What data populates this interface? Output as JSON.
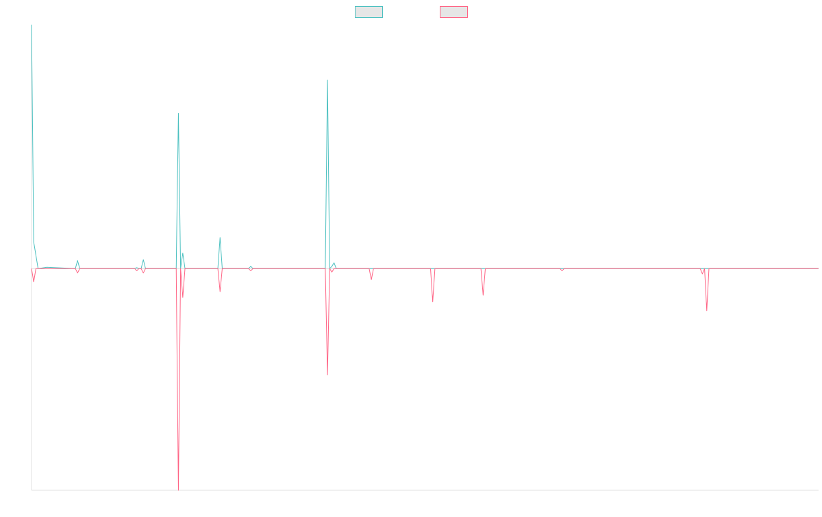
{
  "chart_data": {
    "type": "line",
    "title": "",
    "xlabel": "",
    "ylabel": "",
    "grid": false,
    "legend": {
      "position": "top-center",
      "entries": [
        {
          "label": "",
          "color": "#4bc0c0"
        },
        {
          "label": "",
          "color": "#ff6384"
        }
      ]
    },
    "x": [
      0,
      1,
      2,
      3,
      4,
      5,
      6,
      7,
      8,
      9,
      10,
      11,
      12,
      13,
      14,
      15,
      16,
      17,
      18,
      19,
      20,
      21,
      22,
      23,
      24,
      25,
      26,
      27,
      28,
      29,
      30,
      31,
      32,
      33,
      34,
      35,
      36,
      37,
      38,
      39,
      40,
      41,
      42,
      43,
      44,
      45,
      46,
      47,
      48,
      49,
      50,
      51,
      52,
      53,
      54,
      55,
      56,
      57,
      58,
      59,
      60,
      61,
      62,
      63,
      64,
      65,
      66,
      67,
      68,
      69,
      70,
      71,
      72,
      73,
      74,
      75,
      76,
      77,
      78,
      79,
      80,
      81,
      82,
      83,
      84,
      85,
      86,
      87,
      88,
      89,
      90,
      91,
      92,
      93,
      94,
      95,
      96,
      97,
      98,
      99,
      100,
      101,
      102,
      103,
      104,
      105,
      106,
      107,
      108,
      109,
      110,
      111,
      112,
      113,
      114,
      115,
      116,
      117,
      118,
      119,
      120,
      121,
      122,
      123,
      124,
      125,
      126,
      127,
      128,
      129,
      130,
      131,
      132,
      133,
      134,
      135,
      136,
      137,
      138,
      139,
      140,
      141,
      142,
      143,
      144,
      145,
      146,
      147,
      148,
      149,
      150,
      151,
      152,
      153,
      154,
      155,
      156,
      157,
      158,
      159,
      160,
      161,
      162,
      163,
      164,
      165,
      166,
      167,
      168,
      169,
      170,
      171,
      172,
      173,
      174,
      175,
      176,
      177,
      178,
      179,
      180,
      181,
      182,
      183,
      184,
      185,
      186,
      187,
      188,
      189,
      190,
      191,
      192,
      193,
      194,
      195,
      196,
      197,
      198,
      199,
      200,
      201,
      202,
      203,
      204,
      205,
      206,
      207,
      208,
      209,
      210,
      211,
      212,
      213,
      214,
      215,
      216,
      217,
      218,
      219,
      220,
      221,
      222,
      223,
      224,
      225,
      226,
      227,
      228,
      229,
      230,
      231,
      232,
      233,
      234,
      235,
      236,
      237,
      238,
      239,
      240,
      241,
      242,
      243,
      244,
      245,
      246,
      247,
      248,
      249,
      250,
      251,
      252,
      253,
      254,
      255,
      256,
      257,
      258,
      259,
      260,
      261,
      262,
      263,
      264,
      265,
      266,
      267,
      268,
      269,
      270,
      271,
      272,
      273,
      274,
      275,
      276,
      277,
      278,
      279,
      280,
      281,
      282,
      283,
      284,
      285,
      286,
      287,
      288,
      289,
      290,
      291,
      292,
      293,
      294,
      295,
      296,
      297,
      298,
      299,
      300,
      301,
      302,
      303,
      304,
      305,
      306,
      307,
      308,
      309,
      310,
      311,
      312,
      313,
      314,
      315,
      316,
      317,
      318,
      319,
      320,
      321,
      322,
      323,
      324,
      325,
      326,
      327,
      328,
      329,
      330,
      331,
      332,
      333,
      334,
      335,
      336,
      337,
      338,
      339,
      340,
      341,
      342,
      343,
      344,
      345,
      346,
      347,
      348,
      349,
      350,
      351,
      352,
      353,
      354,
      355,
      356,
      357,
      358,
      359
    ],
    "xlim": [
      0,
      359
    ],
    "ylim": [
      -50,
      55
    ],
    "series": [
      {
        "name": "",
        "color": "#4bc0c0",
        "points": [
          [
            0,
            55
          ],
          [
            1,
            6
          ],
          [
            2,
            3
          ],
          [
            3,
            0
          ],
          [
            7,
            0.3
          ],
          [
            20,
            0
          ],
          [
            21,
            1.8
          ],
          [
            22,
            0
          ],
          [
            47,
            0
          ],
          [
            48,
            0.2
          ],
          [
            49,
            0
          ],
          [
            50,
            0
          ],
          [
            51,
            2
          ],
          [
            52,
            0
          ],
          [
            66,
            0
          ],
          [
            67,
            35
          ],
          [
            68,
            0
          ],
          [
            69,
            3.5
          ],
          [
            70,
            0
          ],
          [
            74,
            0
          ],
          [
            75,
            0
          ],
          [
            85,
            0
          ],
          [
            86,
            7
          ],
          [
            87,
            0
          ],
          [
            99,
            0
          ],
          [
            100,
            0.5
          ],
          [
            101,
            0
          ],
          [
            134,
            0
          ],
          [
            135,
            42.5
          ],
          [
            136,
            0
          ],
          [
            137,
            0.5
          ],
          [
            138,
            1.3
          ],
          [
            139,
            0
          ],
          [
            154,
            0
          ],
          [
            155,
            0
          ],
          [
            160,
            0
          ],
          [
            162,
            0
          ],
          [
            163,
            0
          ],
          [
            164,
            0
          ],
          [
            165,
            0
          ],
          [
            167,
            0
          ],
          [
            168,
            0
          ],
          [
            174,
            0
          ],
          [
            175,
            0
          ],
          [
            176,
            0
          ],
          [
            177,
            0
          ],
          [
            178,
            0
          ],
          [
            179,
            0
          ],
          [
            180,
            0
          ],
          [
            181,
            0
          ],
          [
            182,
            0
          ],
          [
            183,
            0
          ],
          [
            184,
            0
          ],
          [
            185,
            0
          ],
          [
            186,
            0
          ],
          [
            187,
            0
          ],
          [
            188,
            0
          ],
          [
            189,
            0
          ],
          [
            190,
            0
          ],
          [
            191,
            0
          ],
          [
            192,
            0
          ],
          [
            193,
            0
          ],
          [
            194,
            0
          ],
          [
            195,
            0
          ],
          [
            196,
            0
          ],
          [
            197,
            0
          ],
          [
            198,
            0
          ],
          [
            199,
            0
          ],
          [
            200,
            0
          ],
          [
            201,
            0
          ],
          [
            202,
            0
          ],
          [
            203,
            0
          ],
          [
            204,
            0
          ],
          [
            205,
            0
          ],
          [
            206,
            0
          ],
          [
            207,
            0
          ],
          [
            208,
            0
          ],
          [
            209,
            0
          ],
          [
            210,
            0
          ],
          [
            211,
            0
          ],
          [
            212,
            0
          ],
          [
            213,
            0
          ],
          [
            214,
            0
          ],
          [
            215,
            0
          ],
          [
            216,
            0
          ],
          [
            217,
            0
          ],
          [
            218,
            0
          ],
          [
            219,
            0
          ],
          [
            220,
            0
          ],
          [
            221,
            0
          ],
          [
            222,
            0
          ],
          [
            223,
            0
          ],
          [
            224,
            0
          ],
          [
            225,
            0
          ],
          [
            226,
            0
          ],
          [
            227,
            0
          ],
          [
            228,
            0
          ],
          [
            229,
            0
          ],
          [
            230,
            0
          ],
          [
            231,
            0
          ],
          [
            232,
            0
          ],
          [
            233,
            0
          ],
          [
            234,
            0
          ],
          [
            235,
            0
          ],
          [
            236,
            0
          ],
          [
            237,
            0
          ],
          [
            238,
            0
          ],
          [
            239,
            0
          ],
          [
            240,
            0
          ],
          [
            241,
            0
          ],
          [
            242,
            0
          ],
          [
            243,
            0
          ],
          [
            244,
            0
          ],
          [
            245,
            0
          ],
          [
            246,
            0
          ],
          [
            247,
            0
          ],
          [
            248,
            0
          ],
          [
            249,
            0
          ],
          [
            250,
            0
          ],
          [
            251,
            0
          ],
          [
            252,
            0
          ],
          [
            253,
            0
          ],
          [
            254,
            0
          ],
          [
            255,
            0
          ],
          [
            256,
            0
          ],
          [
            257,
            0
          ],
          [
            258,
            0
          ],
          [
            259,
            0
          ],
          [
            260,
            0
          ],
          [
            261,
            0
          ],
          [
            262,
            0
          ],
          [
            263,
            0
          ],
          [
            264,
            0
          ],
          [
            265,
            0
          ],
          [
            266,
            0
          ],
          [
            267,
            0
          ],
          [
            268,
            0
          ],
          [
            269,
            0
          ],
          [
            270,
            0
          ],
          [
            271,
            0
          ],
          [
            272,
            0
          ],
          [
            273,
            0
          ],
          [
            274,
            0
          ],
          [
            275,
            0
          ],
          [
            276,
            0
          ],
          [
            277,
            0
          ],
          [
            278,
            0
          ],
          [
            279,
            0
          ],
          [
            280,
            0
          ],
          [
            281,
            0
          ],
          [
            282,
            0
          ],
          [
            283,
            0
          ],
          [
            284,
            0
          ],
          [
            285,
            0
          ],
          [
            286,
            0
          ],
          [
            287,
            0
          ],
          [
            288,
            0
          ],
          [
            289,
            0
          ],
          [
            290,
            0
          ],
          [
            291,
            0
          ],
          [
            292,
            0
          ],
          [
            293,
            0
          ],
          [
            294,
            0
          ],
          [
            295,
            0
          ],
          [
            296,
            0
          ],
          [
            297,
            0
          ],
          [
            298,
            0
          ],
          [
            299,
            0
          ],
          [
            300,
            0
          ],
          [
            301,
            0
          ],
          [
            302,
            0
          ],
          [
            303,
            0
          ],
          [
            304,
            0
          ],
          [
            305,
            0
          ],
          [
            306,
            0
          ],
          [
            307,
            0
          ],
          [
            308,
            0
          ],
          [
            309,
            0
          ],
          [
            310,
            0
          ],
          [
            311,
            0
          ],
          [
            312,
            0
          ],
          [
            313,
            0
          ],
          [
            314,
            0
          ],
          [
            315,
            0
          ],
          [
            316,
            0
          ],
          [
            317,
            0
          ],
          [
            318,
            0
          ],
          [
            319,
            0
          ],
          [
            320,
            0
          ],
          [
            321,
            0
          ],
          [
            322,
            0
          ],
          [
            323,
            0
          ],
          [
            324,
            0
          ],
          [
            325,
            0
          ],
          [
            326,
            0
          ],
          [
            327,
            0
          ],
          [
            328,
            0
          ],
          [
            329,
            0
          ],
          [
            330,
            0
          ],
          [
            331,
            0
          ],
          [
            332,
            0
          ],
          [
            333,
            0
          ],
          [
            334,
            0
          ],
          [
            335,
            0
          ],
          [
            336,
            0
          ],
          [
            337,
            0
          ],
          [
            338,
            0
          ],
          [
            339,
            0
          ],
          [
            340,
            0
          ],
          [
            341,
            0
          ],
          [
            342,
            0
          ],
          [
            343,
            0
          ],
          [
            344,
            0
          ],
          [
            345,
            0
          ],
          [
            346,
            0
          ],
          [
            347,
            0
          ],
          [
            348,
            0
          ],
          [
            349,
            0
          ],
          [
            350,
            0
          ],
          [
            351,
            0
          ],
          [
            352,
            0
          ],
          [
            353,
            0
          ],
          [
            354,
            0
          ],
          [
            355,
            0
          ],
          [
            356,
            0
          ],
          [
            357,
            0
          ],
          [
            358,
            0
          ],
          [
            359,
            0
          ]
        ]
      },
      {
        "name": "",
        "color": "#ff6384",
        "points": [
          [
            0,
            0
          ],
          [
            1,
            -3
          ],
          [
            2,
            0
          ],
          [
            20,
            0
          ],
          [
            21,
            -1
          ],
          [
            22,
            0
          ],
          [
            47,
            0
          ],
          [
            48,
            -0.5
          ],
          [
            49,
            0
          ],
          [
            50,
            0
          ],
          [
            51,
            -1
          ],
          [
            52,
            0
          ],
          [
            66,
            0
          ],
          [
            67,
            -50
          ],
          [
            68,
            0
          ],
          [
            69,
            -6.5
          ],
          [
            70,
            0
          ],
          [
            85,
            0
          ],
          [
            86,
            -5.2
          ],
          [
            87,
            0
          ],
          [
            99,
            0
          ],
          [
            100,
            -0.5
          ],
          [
            101,
            0
          ],
          [
            134,
            0
          ],
          [
            135,
            -24
          ],
          [
            136,
            0
          ],
          [
            137,
            -0.8
          ],
          [
            138,
            0
          ],
          [
            154,
            0
          ],
          [
            155,
            -2.5
          ],
          [
            156,
            0
          ],
          [
            182,
            0
          ],
          [
            183,
            -7.5
          ],
          [
            184,
            0
          ],
          [
            205,
            0
          ],
          [
            206,
            -6
          ],
          [
            207,
            0
          ],
          [
            241,
            0
          ],
          [
            242,
            -0.5
          ],
          [
            243,
            0
          ],
          [
            305,
            0
          ],
          [
            306,
            -1.2
          ],
          [
            307,
            0
          ],
          [
            308,
            -9.5
          ],
          [
            309,
            0
          ],
          [
            359,
            0
          ]
        ]
      }
    ]
  }
}
